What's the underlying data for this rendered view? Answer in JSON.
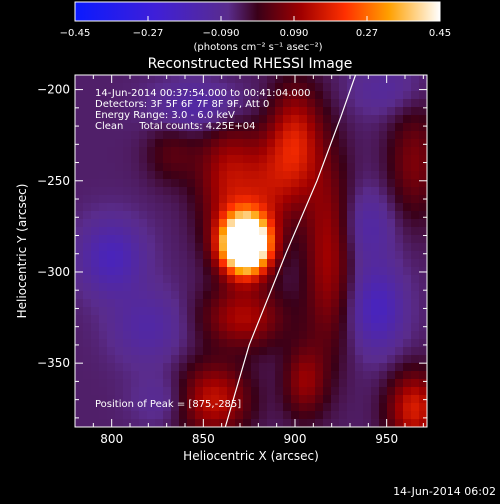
{
  "chart_data": {
    "type": "heatmap",
    "title": "Reconstructed RHESSI Image",
    "xlabel": "Heliocentric X (arcsec)",
    "ylabel": "Heliocentric Y (arcsec)",
    "xlim": [
      780,
      972
    ],
    "ylim": [
      -385,
      -192
    ],
    "xticks": [
      800,
      850,
      900,
      950
    ],
    "yticks": [
      -200,
      -250,
      -300,
      -350
    ],
    "colorbar": {
      "ticks": [
        -0.45,
        -0.27,
        -0.09,
        0.09,
        0.27,
        0.45
      ],
      "tick_labels": [
        "−0.45",
        "−0.27",
        "−0.090",
        "0.090",
        "0.27",
        "0.45"
      ],
      "label": "(photons cm⁻² s⁻¹ asec⁻²)",
      "range": [
        -0.45,
        0.45
      ]
    },
    "annotations": [
      "14-Jun-2014 00:37:54.000 to 00:41:04.000",
      "Detectors: 3F 5F 6F 7F 8F 9F, Att 0",
      "Energy Range: 3.0 - 6.0 keV",
      "Clean     Total counts: 4.25E+04"
    ],
    "peak_label": "Position of Peak = [875,-285]",
    "peak": [
      875,
      -285
    ],
    "limb_curve": [
      [
        862,
        -385
      ],
      [
        875,
        -340
      ],
      [
        895,
        -290
      ],
      [
        912,
        -250
      ],
      [
        925,
        -215
      ],
      [
        933,
        -192
      ]
    ],
    "sources": [
      {
        "x": 873,
        "y": -285,
        "amp": 0.85,
        "sx": 9,
        "sy": 11
      },
      {
        "x": 864,
        "y": -250,
        "amp": 0.18,
        "sx": 12,
        "sy": 25
      },
      {
        "x": 900,
        "y": -230,
        "amp": 0.22,
        "sx": 10,
        "sy": 22
      },
      {
        "x": 885,
        "y": -255,
        "amp": 0.12,
        "sx": 10,
        "sy": 20
      },
      {
        "x": 918,
        "y": -290,
        "amp": 0.16,
        "sx": 9,
        "sy": 38
      },
      {
        "x": 872,
        "y": -325,
        "amp": 0.17,
        "sx": 16,
        "sy": 12
      },
      {
        "x": 855,
        "y": -370,
        "amp": 0.2,
        "sx": 14,
        "sy": 14
      },
      {
        "x": 965,
        "y": -375,
        "amp": 0.22,
        "sx": 10,
        "sy": 14
      },
      {
        "x": 965,
        "y": -240,
        "amp": 0.12,
        "sx": 10,
        "sy": 22
      },
      {
        "x": 905,
        "y": -360,
        "amp": 0.14,
        "sx": 8,
        "sy": 14
      },
      {
        "x": 833,
        "y": -235,
        "amp": 0.08,
        "sx": 10,
        "sy": 12
      },
      {
        "x": 800,
        "y": -292,
        "amp": -0.13,
        "sx": 12,
        "sy": 14
      },
      {
        "x": 850,
        "y": -210,
        "amp": -0.1,
        "sx": 18,
        "sy": 10
      },
      {
        "x": 945,
        "y": -320,
        "amp": -0.14,
        "sx": 10,
        "sy": 16
      },
      {
        "x": 940,
        "y": -275,
        "amp": -0.08,
        "sx": 10,
        "sy": 14
      },
      {
        "x": 820,
        "y": -330,
        "amp": -0.08,
        "sx": 14,
        "sy": 14
      },
      {
        "x": 950,
        "y": -200,
        "amp": -0.06,
        "sx": 14,
        "sy": 10
      },
      {
        "x": 830,
        "y": -370,
        "amp": -0.06,
        "sx": 12,
        "sy": 10
      }
    ]
  },
  "timestamp": "14-Jun-2014 06:02"
}
